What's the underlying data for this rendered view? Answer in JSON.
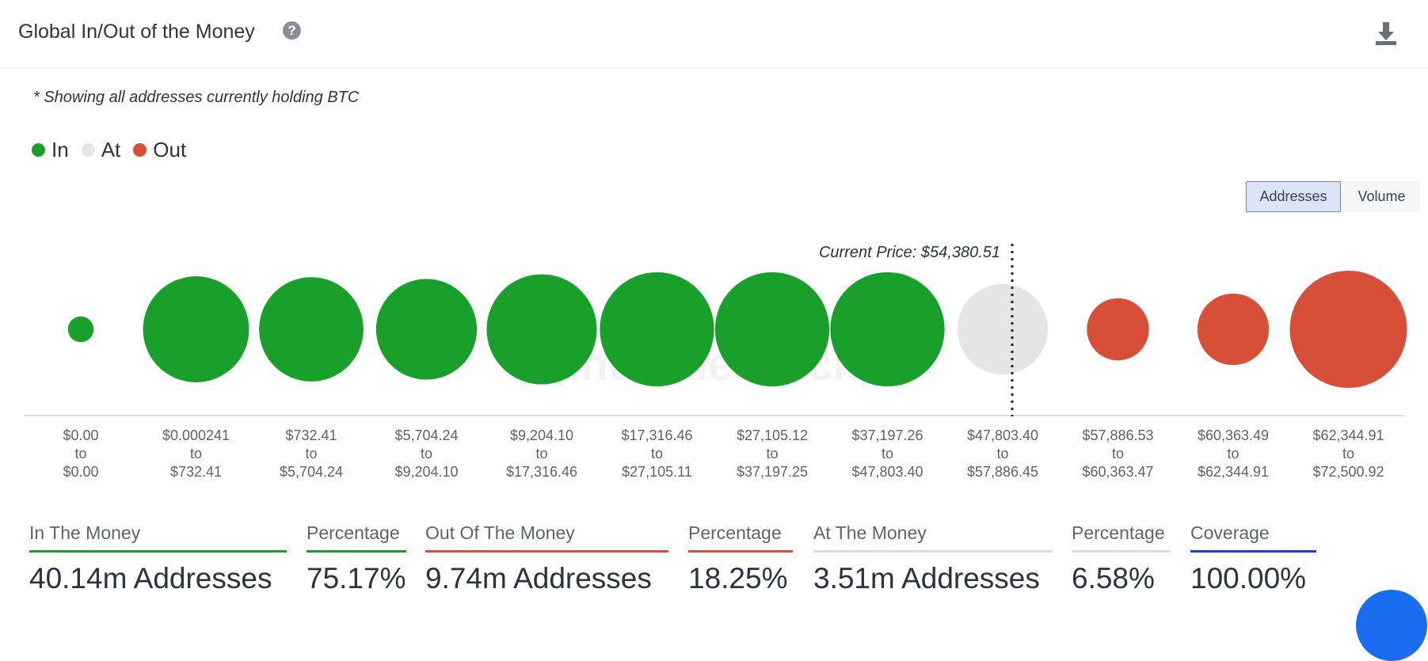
{
  "header": {
    "title": "Global In/Out of the Money",
    "help_icon": "question-circle-icon",
    "download_icon": "download-icon"
  },
  "note": "* Showing all addresses currently holding BTC",
  "legend": [
    {
      "label": "In",
      "color": "#18a02a"
    },
    {
      "label": "At",
      "color": "#e5e5e5"
    },
    {
      "label": "Out",
      "color": "#d84f38"
    }
  ],
  "toggle": {
    "addresses": "Addresses",
    "volume": "Volume",
    "selected": "Addresses"
  },
  "chart_data": {
    "type": "bubble",
    "current_price_label": "Current Price: $54,380.51",
    "current_price_position": "between bins 9 and 10",
    "watermark": "IntoTheBlock",
    "categories": [
      {
        "from": "$0.00",
        "to": "$0.00",
        "status": "In",
        "size_rel": 0.22
      },
      {
        "from": "$0.000241",
        "to": "$732.41",
        "status": "In",
        "size_rel": 0.905
      },
      {
        "from": "$732.41",
        "to": "$5,704.24",
        "status": "In",
        "size_rel": 0.89
      },
      {
        "from": "$5,704.24",
        "to": "$9,204.10",
        "status": "In",
        "size_rel": 0.86
      },
      {
        "from": "$9,204.10",
        "to": "$17,316.46",
        "status": "In",
        "size_rel": 0.94
      },
      {
        "from": "$17,316.46",
        "to": "$27,105.11",
        "status": "In",
        "size_rel": 0.975
      },
      {
        "from": "$27,105.12",
        "to": "$37,197.25",
        "status": "In",
        "size_rel": 0.975
      },
      {
        "from": "$37,197.26",
        "to": "$47,803.40",
        "status": "In",
        "size_rel": 0.975
      },
      {
        "from": "$47,803.40",
        "to": "$57,886.45",
        "status": "At",
        "size_rel": 0.77
      },
      {
        "from": "$57,886.53",
        "to": "$60,363.47",
        "status": "Out",
        "size_rel": 0.53
      },
      {
        "from": "$60,363.49",
        "to": "$62,344.91",
        "status": "Out",
        "size_rel": 0.61
      },
      {
        "from": "$62,344.91",
        "to": "$72,500.92",
        "status": "Out",
        "size_rel": 1.0
      }
    ],
    "connector": "to"
  },
  "stats": [
    {
      "label": "In The Money",
      "value": "40.14m Addresses",
      "color": "#18a02a"
    },
    {
      "label": "Percentage",
      "value": "75.17%",
      "color": "#18a02a"
    },
    {
      "label": "Out Of The Money",
      "value": "9.74m Addresses",
      "color": "#d84f38"
    },
    {
      "label": "Percentage",
      "value": "18.25%",
      "color": "#d84f38"
    },
    {
      "label": "At The Money",
      "value": "3.51m Addresses",
      "color": "#dcdcdc"
    },
    {
      "label": "Percentage",
      "value": "6.58%",
      "color": "#dcdcdc"
    },
    {
      "label": "Coverage",
      "value": "100.00%",
      "color": "#1a3ed8"
    }
  ]
}
